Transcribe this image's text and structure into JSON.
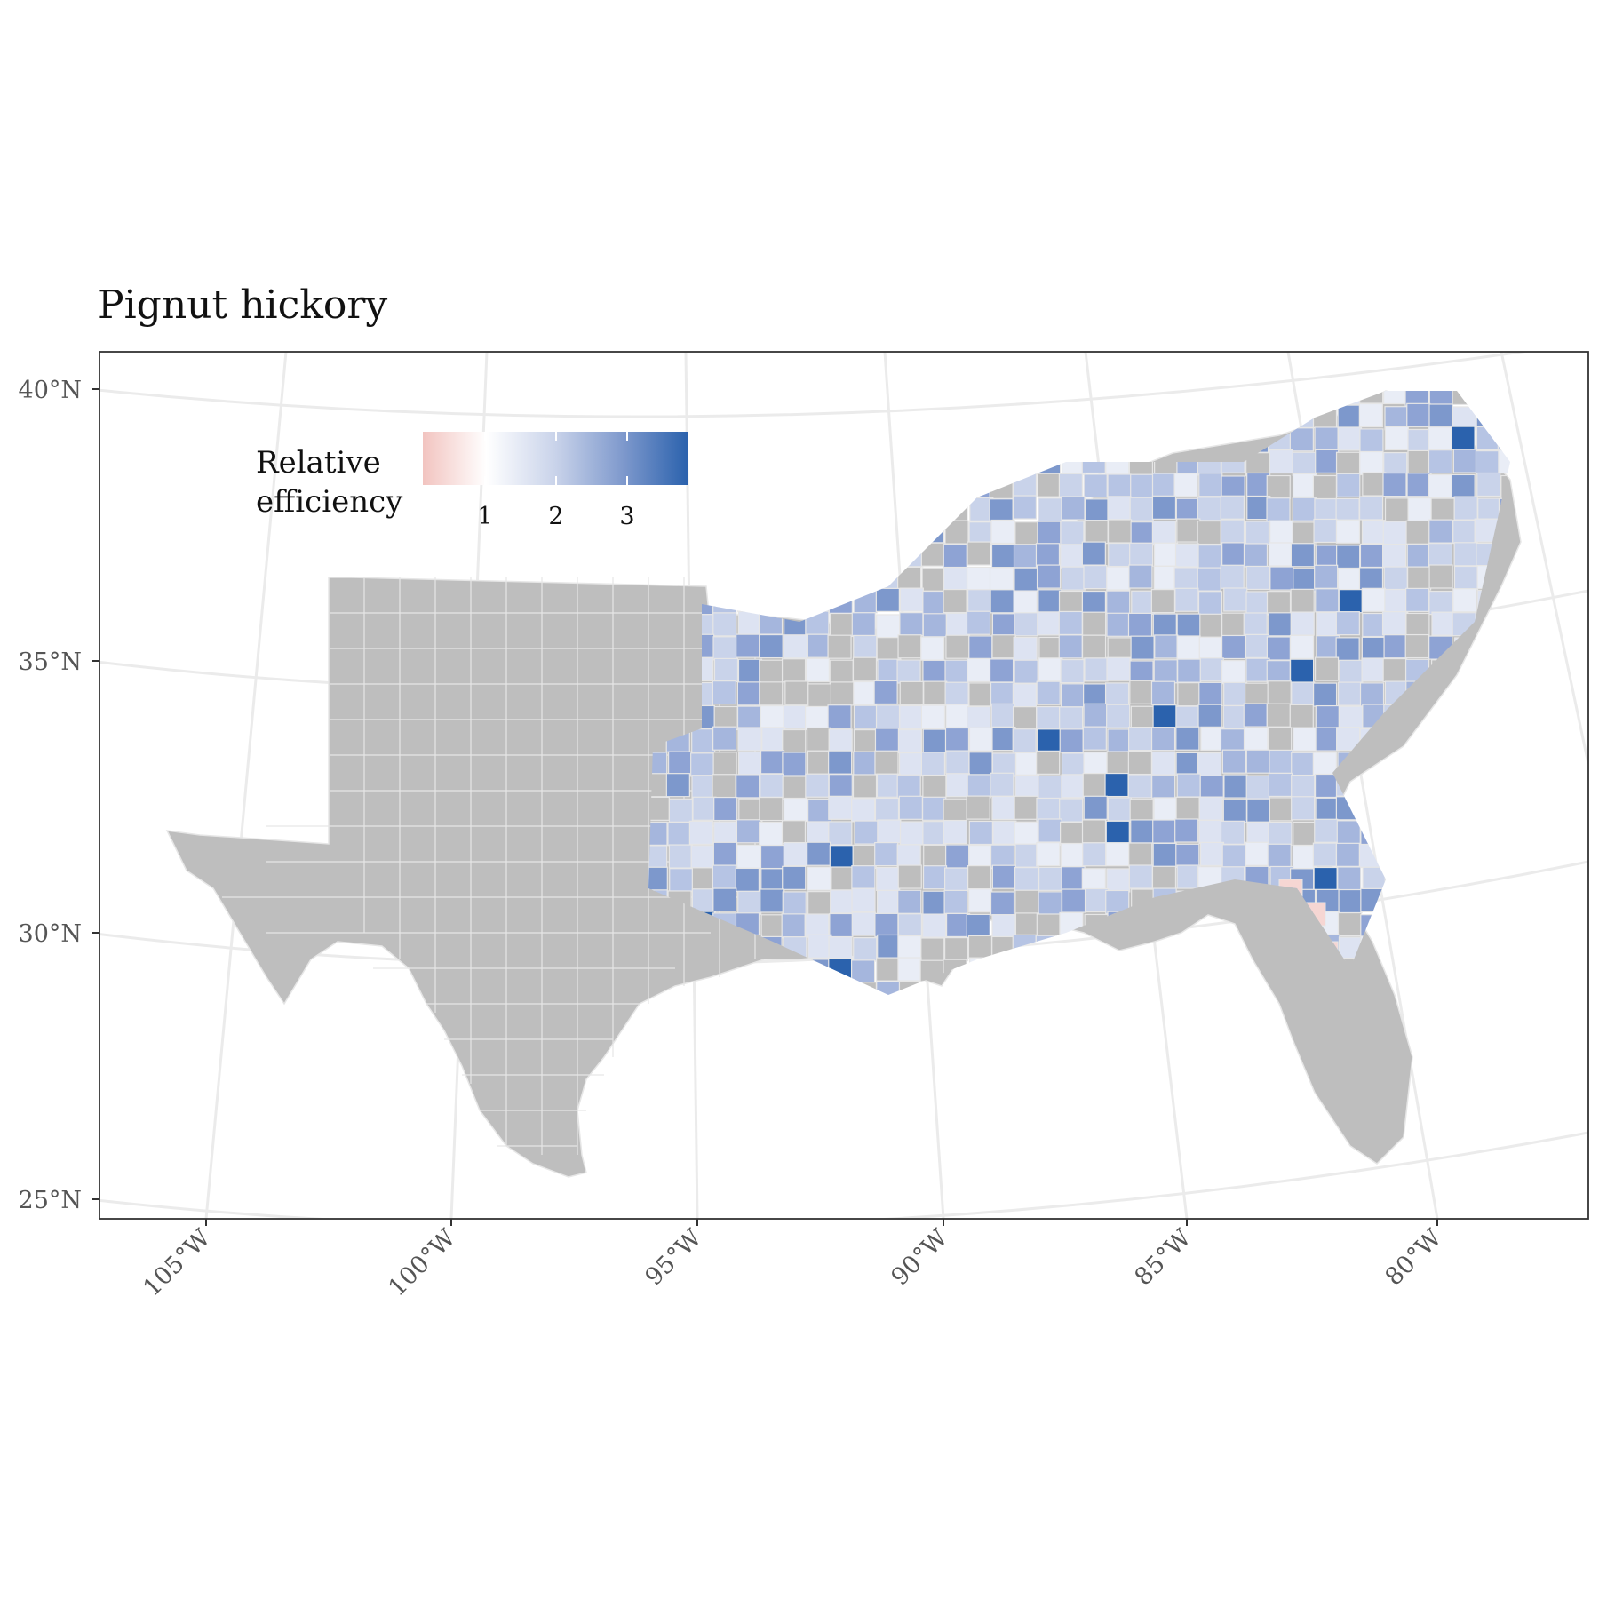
{
  "title": "Pignut hickory",
  "legend": {
    "title_line1": "Relative",
    "title_line2": "efficiency",
    "ticks": [
      "1",
      "2",
      "3"
    ],
    "colors": {
      "low": "#f2c4c0",
      "mid": "#ffffff",
      "high": "#2b62ad"
    }
  },
  "axes": {
    "lat_labels": [
      "40°N",
      "35°N",
      "30°N",
      "25°N"
    ],
    "lon_labels": [
      "105°W",
      "100°W",
      "95°W",
      "90°W",
      "85°W",
      "80°W"
    ]
  },
  "colors": {
    "no_data": "#bebebe",
    "county_border": "#e6e6e6",
    "graticule": "#ebebeb",
    "panel_border": "#333333"
  }
}
